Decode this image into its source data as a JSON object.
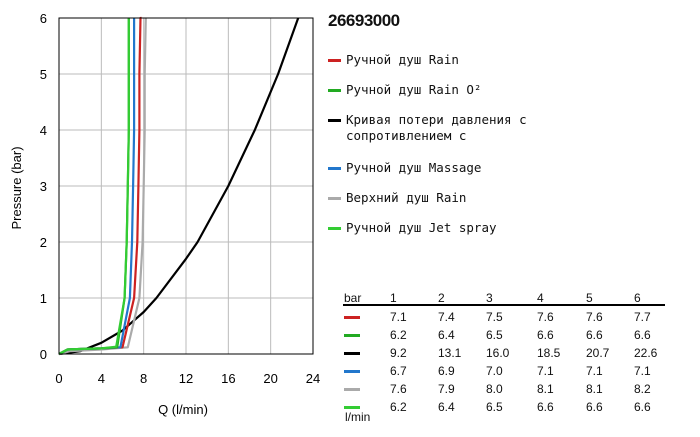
{
  "chart_data": {
    "type": "line",
    "title": "26693000",
    "xlabel": "Q (l/min)",
    "ylabel": "Pressure (bar)",
    "xlim": [
      0,
      24
    ],
    "ylim": [
      0,
      6
    ],
    "xticks": [
      0,
      4,
      8,
      12,
      16,
      20,
      24
    ],
    "yticks": [
      0,
      1,
      2,
      3,
      4,
      5,
      6
    ],
    "grid": true,
    "legend_position": "right",
    "series": [
      {
        "name": "Ручной душ Rain",
        "color": "#cc2222",
        "x": [
          0,
          0.8,
          2,
          4,
          6,
          7.1,
          7.4,
          7.5,
          7.6,
          7.6,
          7.7,
          7.8
        ],
        "y": [
          0,
          0.08,
          0.09,
          0.1,
          0.12,
          1,
          2,
          3,
          4,
          5,
          6,
          6
        ]
      },
      {
        "name": "Ручной душ Rain O²",
        "color": "#22aa22",
        "x": [
          0,
          0.8,
          2,
          4,
          5.5,
          6.2,
          6.4,
          6.5,
          6.6,
          6.6,
          6.6
        ],
        "y": [
          0,
          0.08,
          0.09,
          0.1,
          0.12,
          1,
          2,
          3,
          4,
          5,
          6
        ]
      },
      {
        "name": "Кривая потери давления с сопротивлением с",
        "color": "#000000",
        "x": [
          0,
          2,
          4,
          6,
          8,
          9.2,
          12,
          13.1,
          16,
          18.5,
          20.7,
          22.6
        ],
        "y": [
          0,
          0.05,
          0.2,
          0.42,
          0.75,
          1,
          1.7,
          2,
          3,
          4,
          5,
          6
        ]
      },
      {
        "name": "Ручной душ Massage",
        "color": "#2277cc",
        "x": [
          0,
          0.8,
          2,
          4,
          5.8,
          6.7,
          6.9,
          7.0,
          7.1,
          7.1,
          7.1
        ],
        "y": [
          0,
          0.08,
          0.09,
          0.1,
          0.12,
          1,
          2,
          3,
          4,
          5,
          6
        ]
      },
      {
        "name": "Верхний душ Rain",
        "color": "#aaaaaa",
        "x": [
          0,
          1,
          2,
          4,
          6.5,
          7.6,
          7.9,
          8.0,
          8.1,
          8.1,
          8.2
        ],
        "y": [
          0,
          0.05,
          0.06,
          0.08,
          0.12,
          1,
          2,
          3,
          4,
          5,
          6
        ]
      },
      {
        "name": "Ручной душ Jet spray",
        "color": "#33cc33",
        "x": [
          0,
          0.8,
          2,
          4,
          5.4,
          6.2,
          6.4,
          6.5,
          6.6,
          6.6,
          6.6
        ],
        "y": [
          0,
          0.08,
          0.09,
          0.1,
          0.13,
          1,
          2,
          3,
          4,
          5,
          6
        ]
      }
    ],
    "table": {
      "header_label": "bar",
      "unit_label": "l/min",
      "columns": [
        "1",
        "2",
        "3",
        "4",
        "5",
        "6"
      ],
      "rows": [
        {
          "color": "#cc2222",
          "values": [
            "7.1",
            "7.4",
            "7.5",
            "7.6",
            "7.6",
            "7.7"
          ]
        },
        {
          "color": "#22aa22",
          "values": [
            "6.2",
            "6.4",
            "6.5",
            "6.6",
            "6.6",
            "6.6"
          ]
        },
        {
          "color": "#000000",
          "values": [
            "9.2",
            "13.1",
            "16.0",
            "18.5",
            "20.7",
            "22.6"
          ]
        },
        {
          "color": "#2277cc",
          "values": [
            "6.7",
            "6.9",
            "7.0",
            "7.1",
            "7.1",
            "7.1"
          ]
        },
        {
          "color": "#aaaaaa",
          "values": [
            "7.6",
            "7.9",
            "8.0",
            "8.1",
            "8.1",
            "8.2"
          ]
        },
        {
          "color": "#33cc33",
          "values": [
            "6.2",
            "6.4",
            "6.5",
            "6.6",
            "6.6",
            "6.6"
          ]
        }
      ]
    }
  }
}
